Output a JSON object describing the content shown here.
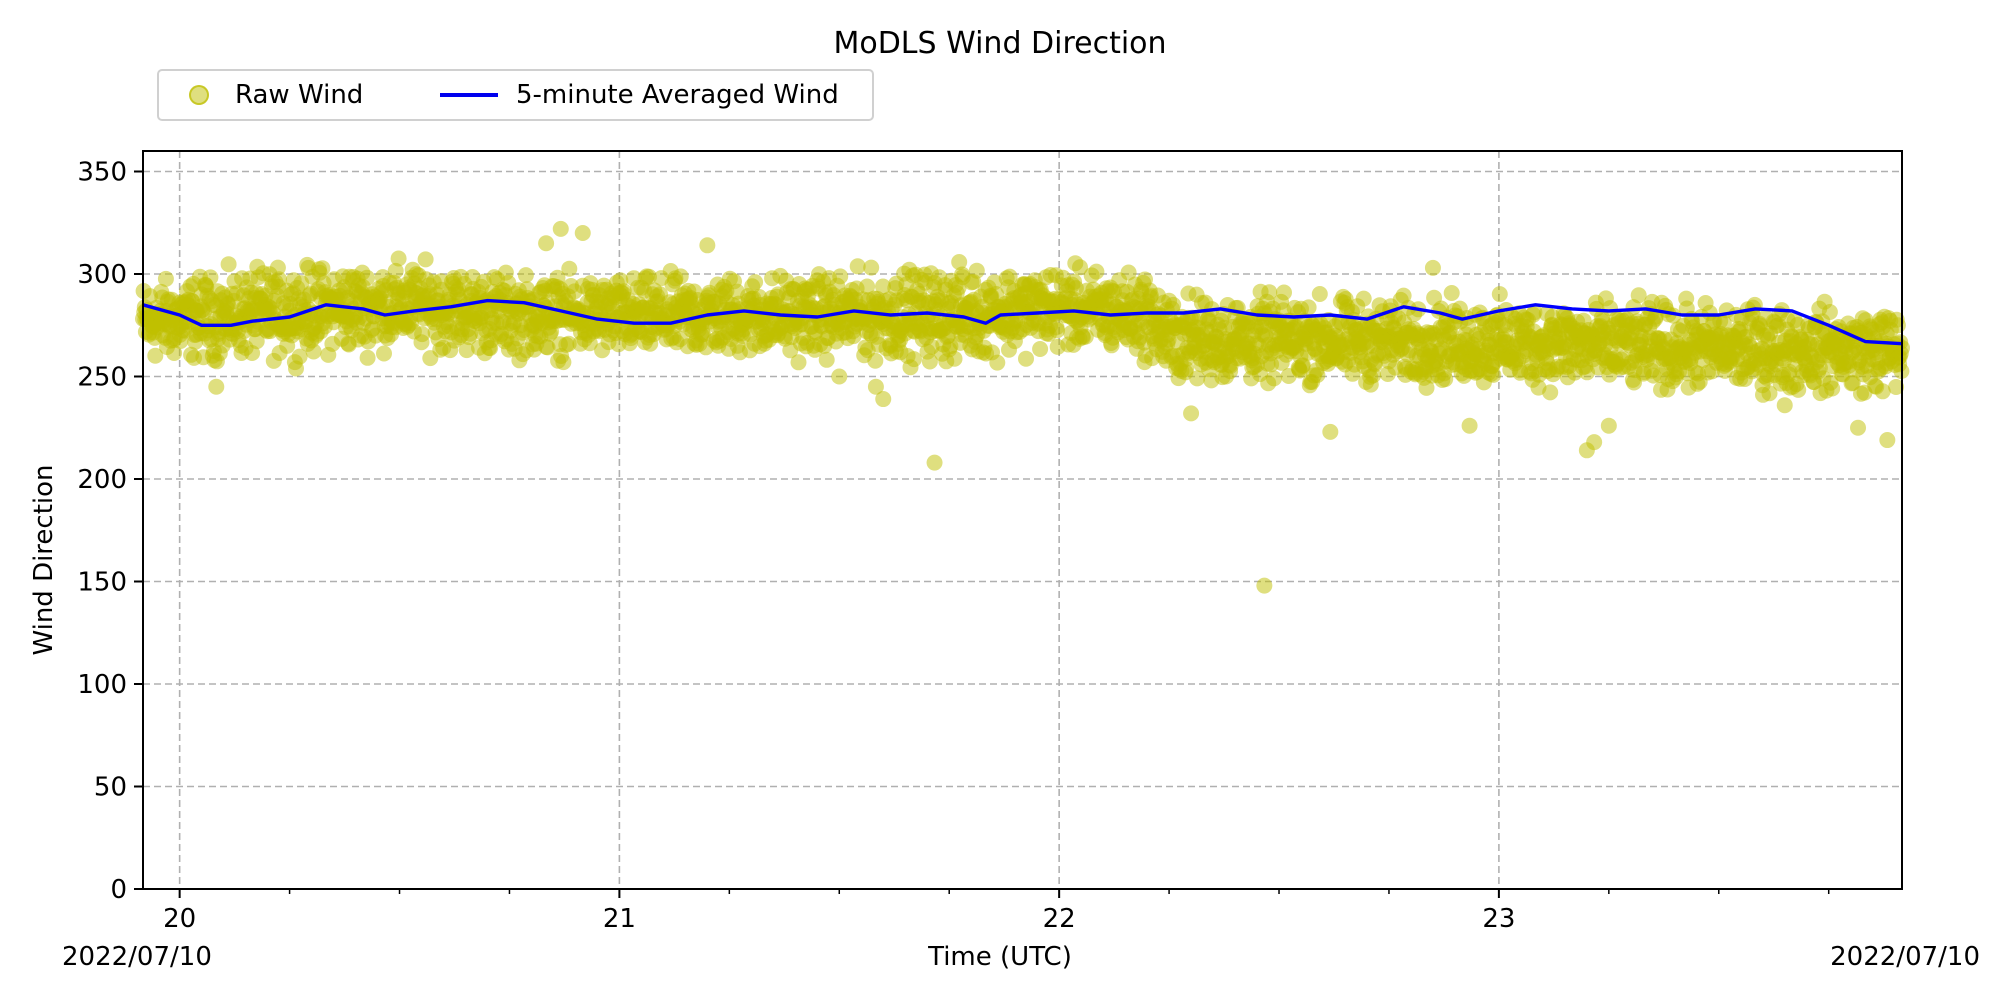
{
  "chart_data": {
    "type": "scatter",
    "title": "MoDLS Wind Direction",
    "xlabel": "Time (UTC)",
    "ylabel": "Wind Direction",
    "x_start_label": "2022/07/10",
    "x_end_label": "2022/07/10",
    "xlim": [
      "2022-07-10T19:55",
      "2022-07-10T23:55"
    ],
    "ylim": [
      0,
      360
    ],
    "x_ticks": [
      {
        "x": "2022-07-10T20:00",
        "label": "20"
      },
      {
        "x": "2022-07-10T21:00",
        "label": "21"
      },
      {
        "x": "2022-07-10T22:00",
        "label": "22"
      },
      {
        "x": "2022-07-10T23:00",
        "label": "23"
      }
    ],
    "x_minor_ticks": [
      "20:15",
      "20:30",
      "20:45",
      "21:15",
      "21:30",
      "21:45",
      "22:15",
      "22:30",
      "22:45",
      "23:15",
      "23:30",
      "23:45"
    ],
    "y_ticks": [
      0,
      50,
      100,
      150,
      200,
      250,
      300,
      350
    ],
    "grid": true,
    "legend": "above top-left, horizontal",
    "colors": {
      "raw": "#bfbf00",
      "averaged": "#0000ff"
    },
    "series": [
      {
        "name": "Raw Wind",
        "type": "scatter",
        "envelope": [
          {
            "time": "19:55",
            "y_min": 255,
            "y_max": 298
          },
          {
            "time": "20:15",
            "y_min": 258,
            "y_max": 305
          },
          {
            "time": "20:30",
            "y_min": 262,
            "y_max": 308
          },
          {
            "time": "20:45",
            "y_min": 258,
            "y_max": 302
          },
          {
            "time": "21:00",
            "y_min": 258,
            "y_max": 300
          },
          {
            "time": "21:30",
            "y_min": 258,
            "y_max": 302
          },
          {
            "time": "21:45",
            "y_min": 255,
            "y_max": 305
          },
          {
            "time": "22:00",
            "y_min": 262,
            "y_max": 305
          },
          {
            "time": "22:12",
            "y_min": 258,
            "y_max": 302
          },
          {
            "time": "22:15",
            "y_min": 245,
            "y_max": 292
          },
          {
            "time": "22:45",
            "y_min": 245,
            "y_max": 290
          },
          {
            "time": "23:15",
            "y_min": 242,
            "y_max": 288
          },
          {
            "time": "23:55",
            "y_min": 240,
            "y_max": 285
          }
        ],
        "outliers": [
          {
            "time": "20:05",
            "y": 245
          },
          {
            "time": "20:50",
            "y": 315
          },
          {
            "time": "20:52",
            "y": 322
          },
          {
            "time": "20:55",
            "y": 320
          },
          {
            "time": "21:12",
            "y": 314
          },
          {
            "time": "21:30",
            "y": 250
          },
          {
            "time": "21:35",
            "y": 245
          },
          {
            "time": "21:36",
            "y": 239
          },
          {
            "time": "21:43",
            "y": 208
          },
          {
            "time": "22:18",
            "y": 232
          },
          {
            "time": "22:28",
            "y": 148
          },
          {
            "time": "22:37",
            "y": 223
          },
          {
            "time": "22:51",
            "y": 303
          },
          {
            "time": "22:56",
            "y": 226
          },
          {
            "time": "23:12",
            "y": 214
          },
          {
            "time": "23:13",
            "y": 218
          },
          {
            "time": "23:15",
            "y": 226
          },
          {
            "time": "23:39",
            "y": 236
          },
          {
            "time": "23:49",
            "y": 225
          },
          {
            "time": "23:53",
            "y": 219
          }
        ]
      },
      {
        "name": "5-minute Averaged Wind",
        "type": "line",
        "points": [
          {
            "time": "19:55",
            "y": 285
          },
          {
            "time": "20:00",
            "y": 280
          },
          {
            "time": "20:03",
            "y": 275
          },
          {
            "time": "20:07",
            "y": 275
          },
          {
            "time": "20:10",
            "y": 277
          },
          {
            "time": "20:15",
            "y": 279
          },
          {
            "time": "20:20",
            "y": 285
          },
          {
            "time": "20:25",
            "y": 283
          },
          {
            "time": "20:28",
            "y": 280
          },
          {
            "time": "20:32",
            "y": 282
          },
          {
            "time": "20:37",
            "y": 284
          },
          {
            "time": "20:42",
            "y": 287
          },
          {
            "time": "20:47",
            "y": 286
          },
          {
            "time": "20:52",
            "y": 282
          },
          {
            "time": "20:57",
            "y": 278
          },
          {
            "time": "21:02",
            "y": 276
          },
          {
            "time": "21:07",
            "y": 276
          },
          {
            "time": "21:12",
            "y": 280
          },
          {
            "time": "21:17",
            "y": 282
          },
          {
            "time": "21:22",
            "y": 280
          },
          {
            "time": "21:27",
            "y": 279
          },
          {
            "time": "21:32",
            "y": 282
          },
          {
            "time": "21:37",
            "y": 280
          },
          {
            "time": "21:42",
            "y": 281
          },
          {
            "time": "21:47",
            "y": 279
          },
          {
            "time": "21:50",
            "y": 276
          },
          {
            "time": "21:52",
            "y": 280
          },
          {
            "time": "21:57",
            "y": 281
          },
          {
            "time": "22:02",
            "y": 282
          },
          {
            "time": "22:07",
            "y": 280
          },
          {
            "time": "22:12",
            "y": 281
          },
          {
            "time": "22:17",
            "y": 281
          },
          {
            "time": "22:22",
            "y": 283
          },
          {
            "time": "22:27",
            "y": 280
          },
          {
            "time": "22:32",
            "y": 279
          },
          {
            "time": "22:37",
            "y": 280
          },
          {
            "time": "22:42",
            "y": 278
          },
          {
            "time": "22:47",
            "y": 284
          },
          {
            "time": "22:52",
            "y": 281
          },
          {
            "time": "22:55",
            "y": 278
          },
          {
            "time": "23:00",
            "y": 282
          },
          {
            "time": "23:05",
            "y": 285
          },
          {
            "time": "23:10",
            "y": 283
          },
          {
            "time": "23:15",
            "y": 282
          },
          {
            "time": "23:20",
            "y": 283
          },
          {
            "time": "23:25",
            "y": 280
          },
          {
            "time": "23:30",
            "y": 280
          },
          {
            "time": "23:35",
            "y": 283
          },
          {
            "time": "23:40",
            "y": 282
          },
          {
            "time": "23:45",
            "y": 275
          },
          {
            "time": "23:50",
            "y": 267
          },
          {
            "time": "23:55",
            "y": 266
          }
        ]
      }
    ]
  }
}
